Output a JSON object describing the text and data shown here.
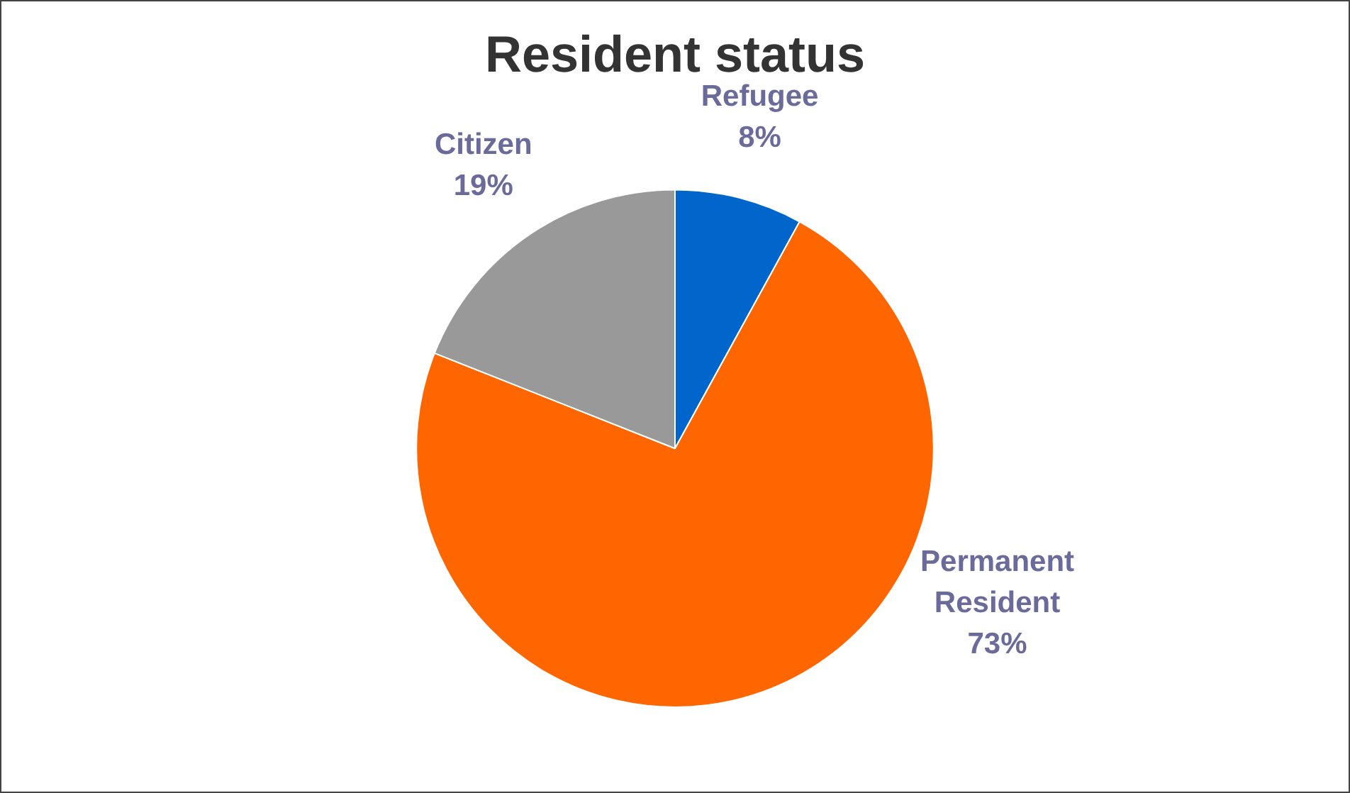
{
  "chart_data": {
    "type": "pie",
    "title": "Resident status",
    "categories": [
      "Refugee",
      "Permanent Resident",
      "Citizen"
    ],
    "values": [
      8,
      73,
      19
    ],
    "value_labels": [
      "8%",
      "73%",
      "19%"
    ],
    "colors": [
      "#0066cc",
      "#ff6600",
      "#999999"
    ],
    "legend": false
  }
}
